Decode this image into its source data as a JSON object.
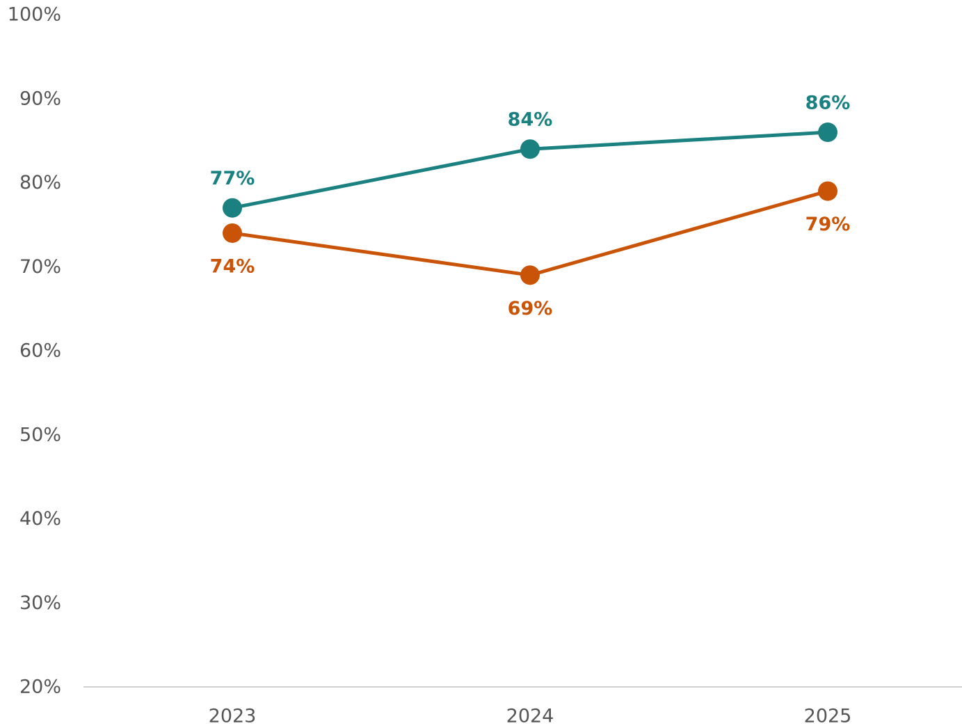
{
  "chart_data": {
    "type": "line",
    "categories": [
      "2023",
      "2024",
      "2025"
    ],
    "series": [
      {
        "color": "#1a8080",
        "values": [
          77,
          84,
          86
        ],
        "labels": [
          "77%",
          "84%",
          "86%"
        ],
        "label_position": "above"
      },
      {
        "color": "#c95408",
        "values": [
          74,
          69,
          79
        ],
        "labels": [
          "74%",
          "69%",
          "79%"
        ],
        "label_position": "below"
      }
    ],
    "ylim": [
      20,
      100
    ],
    "yticks": [
      20,
      30,
      40,
      50,
      60,
      70,
      80,
      90,
      100
    ],
    "ytick_labels": [
      "20%",
      "30%",
      "40%",
      "50%",
      "60%",
      "70%",
      "80%",
      "90%",
      "100%"
    ],
    "xlabel": "",
    "ylabel": "",
    "grid": false,
    "legend": "none"
  }
}
